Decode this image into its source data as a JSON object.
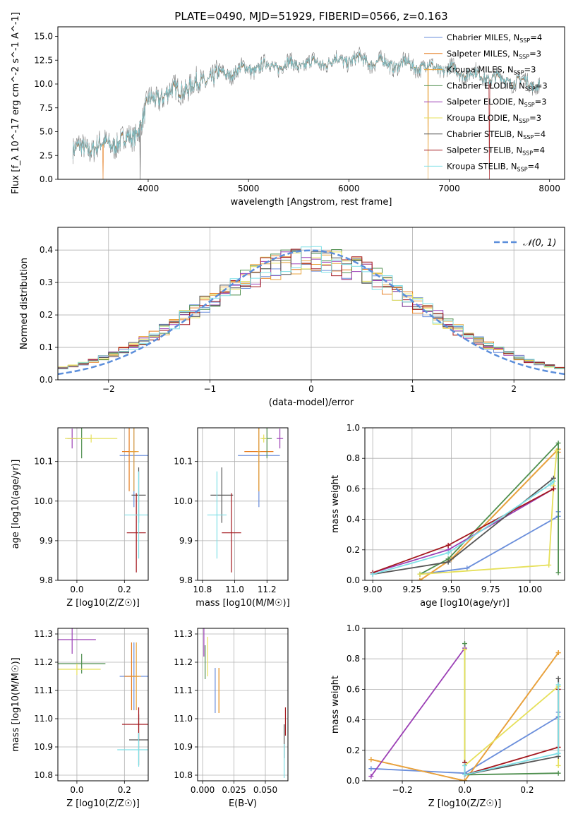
{
  "figure": {
    "title": "PLATE=0490, MJD=51929, FIBERID=0566, z=0.163"
  },
  "model_colors": [
    "#6A8EDB",
    "#E67E22",
    "#E8A33C",
    "#4F8F4F",
    "#9B3FB5",
    "#E6E05A",
    "#555555",
    "#A3171D",
    "#7EDFE6"
  ],
  "spectrum_colors": {
    "data": "#808080"
  },
  "chart_data": [
    {
      "id": "spectrum",
      "type": "line",
      "title": "PLATE=0490, MJD=51929, FIBERID=0566, z=0.163",
      "xlabel": "wavelength [Angstrom, rest frame]",
      "ylabel": "Flux [f_λ 10^-17 erg cm^-2 s^-1 A^-1]",
      "xlim": [
        3100,
        8150
      ],
      "ylim": [
        0,
        16
      ],
      "xticks": [
        "4000",
        "5000",
        "6000",
        "7000",
        "8000"
      ],
      "yticks": [
        "0.0",
        "2.5",
        "5.0",
        "7.5",
        "10.0",
        "12.5",
        "15.0"
      ],
      "envelope": {
        "x": [
          3250,
          3400,
          3550,
          3700,
          3850,
          3950,
          4000,
          4150,
          4300,
          4450,
          4600,
          4800,
          5000,
          5200,
          5400,
          5600,
          5800,
          6000,
          6200,
          6400,
          6600,
          6800,
          7000,
          7200,
          7400,
          7600,
          7900
        ],
        "y": [
          3.1,
          3.3,
          3.6,
          3.9,
          4.4,
          6.5,
          8.0,
          8.9,
          9.4,
          9.8,
          10.6,
          11.2,
          11.6,
          11.9,
          12.0,
          12.1,
          12.3,
          12.6,
          12.4,
          12.1,
          12.0,
          11.8,
          11.5,
          11.1,
          10.7,
          10.4,
          10.0
        ]
      },
      "dips": [
        {
          "x": 3550,
          "y": 0
        },
        {
          "x": 3920,
          "y": 0
        },
        {
          "x": 6790,
          "y": 0
        },
        {
          "x": 7400,
          "y": 0
        }
      ],
      "legend_position": "right",
      "legend": [
        {
          "label": "Chabrier MILES, N",
          "sub": "SSP",
          "suffix": "=4"
        },
        {
          "label": "Salpeter MILES, N",
          "sub": "SSP",
          "suffix": "=3"
        },
        {
          "label": "Kroupa MILES, N",
          "sub": "SSP",
          "suffix": "=3"
        },
        {
          "label": "Chabrier ELODIE, N",
          "sub": "SSP",
          "suffix": "=3"
        },
        {
          "label": "Salpeter ELODIE, N",
          "sub": "SSP",
          "suffix": "=3"
        },
        {
          "label": "Kroupa ELODIE, N",
          "sub": "SSP",
          "suffix": "=3"
        },
        {
          "label": "Chabrier STELIB, N",
          "sub": "SSP",
          "suffix": "=4"
        },
        {
          "label": "Salpeter STELIB, N",
          "sub": "SSP",
          "suffix": "=4"
        },
        {
          "label": "Kroupa STELIB, N",
          "sub": "SSP",
          "suffix": "=4"
        }
      ]
    },
    {
      "id": "residuals",
      "type": "histogram",
      "xlabel": "(data-model)/error",
      "ylabel": "Normed distribution",
      "xlim": [
        -2.5,
        2.5
      ],
      "ylim": [
        0,
        0.47
      ],
      "xticks": [
        "−2",
        "−1",
        "0",
        "1",
        "2"
      ],
      "yticks": [
        "0.0",
        "0.1",
        "0.2",
        "0.3",
        "0.4"
      ],
      "bins": 50,
      "legend": "𝒩(0, 1)",
      "legend_position": "top-right",
      "gaussian_color": "#5B8EDB"
    },
    {
      "id": "age_vs_Z",
      "type": "errorbar",
      "xlabel": "Z [log10(Z/Z☉)]",
      "ylabel": "age  [log10(age/yr)]",
      "xlim": [
        -0.08,
        0.3
      ],
      "ylim": [
        9.8,
        10.185
      ],
      "xticks": [
        "0.0",
        "0.2"
      ],
      "yticks": [
        "9.8",
        "9.9",
        "10.0",
        "10.1"
      ],
      "points": [
        {
          "x": 0.24,
          "xerr": 0.06,
          "y": 10.115,
          "yerr": 0.13
        },
        {
          "x": 0.22,
          "xerr": 0.03,
          "y": 10.125,
          "yerr": 0.1
        },
        {
          "x": 0.24,
          "xerr": 0.02,
          "y": 10.125,
          "yerr": 0.1
        },
        {
          "x": 0.02,
          "xerr": 0.04,
          "y": 10.158,
          "yerr": 0.05
        },
        {
          "x": -0.02,
          "xerr": 0.02,
          "y": 10.158,
          "yerr": 0.025
        },
        {
          "x": 0.06,
          "xerr": 0.11,
          "y": 10.158,
          "yerr": 0.01
        },
        {
          "x": 0.26,
          "xerr": 0.03,
          "y": 10.015,
          "yerr": 0.07
        },
        {
          "x": 0.25,
          "xerr": 0.04,
          "y": 9.92,
          "yerr": 0.1
        },
        {
          "x": 0.26,
          "xerr": 0.06,
          "y": 9.965,
          "yerr": 0.11
        }
      ]
    },
    {
      "id": "age_vs_mass",
      "type": "errorbar",
      "xlabel": "mass [log10(M/M☉)]",
      "ylabel": "",
      "xlim": [
        10.77,
        11.33
      ],
      "ylim": [
        9.8,
        10.185
      ],
      "xticks": [
        "10.8",
        "11.0",
        "11.2"
      ],
      "yticks": [
        "9.8",
        "9.9",
        "10.0",
        "10.1"
      ],
      "points": [
        {
          "x": 11.15,
          "xerr": 0.13,
          "y": 10.115,
          "yerr": 0.13
        },
        {
          "x": 11.15,
          "xerr": 0.09,
          "y": 10.125,
          "yerr": 0.1
        },
        {
          "x": 11.15,
          "xerr": 0.01,
          "y": 10.125,
          "yerr": 0.1
        },
        {
          "x": 11.2,
          "xerr": 0.03,
          "y": 10.158,
          "yerr": 0.05
        },
        {
          "x": 11.28,
          "xerr": 0.02,
          "y": 10.158,
          "yerr": 0.025
        },
        {
          "x": 11.18,
          "xerr": 0.02,
          "y": 10.158,
          "yerr": 0.01
        },
        {
          "x": 10.92,
          "xerr": 0.07,
          "y": 10.015,
          "yerr": 0.07
        },
        {
          "x": 10.98,
          "xerr": 0.06,
          "y": 9.92,
          "yerr": 0.1
        },
        {
          "x": 10.89,
          "xerr": 0.06,
          "y": 9.965,
          "yerr": 0.11
        }
      ]
    },
    {
      "id": "weight_vs_age",
      "type": "line",
      "xlabel": "age  [log10(age/yr)]",
      "ylabel": "mass weight",
      "xlim": [
        8.95,
        10.22
      ],
      "ylim": [
        0,
        1.0
      ],
      "xticks": [
        "9.00",
        "9.25",
        "9.50",
        "9.75",
        "10.00"
      ],
      "yticks": [
        "0.0",
        "0.2",
        "0.4",
        "0.6",
        "0.8",
        "1.0"
      ],
      "series": [
        {
          "x": [
            9.3,
            9.6,
            10.18,
            10.18
          ],
          "y": [
            0.04,
            0.08,
            0.42,
            0.45
          ]
        },
        {
          "x": [
            9.3,
            9.5,
            10.18,
            10.18
          ],
          "y": [
            0.0,
            0.14,
            0.86,
            0.84
          ]
        },
        {
          "x": [
            9.3,
            9.5,
            10.18
          ],
          "y": [
            0.0,
            0.14,
            0.86
          ]
        },
        {
          "x": [
            9.3,
            9.48,
            10.18,
            10.18
          ],
          "y": [
            0.04,
            0.14,
            0.9,
            0.05
          ]
        },
        {
          "x": [
            9.0,
            9.48,
            10.15
          ],
          "y": [
            0.05,
            0.2,
            0.6
          ]
        },
        {
          "x": [
            9.3,
            10.12,
            10.15,
            10.17
          ],
          "y": [
            0.04,
            0.1,
            0.62,
            0.85
          ]
        },
        {
          "x": [
            9.0,
            9.48,
            10.15
          ],
          "y": [
            0.04,
            0.12,
            0.67
          ]
        },
        {
          "x": [
            9.0,
            9.48,
            10.15
          ],
          "y": [
            0.05,
            0.23,
            0.6
          ]
        },
        {
          "x": [
            9.0,
            9.48,
            10.13,
            10.15
          ],
          "y": [
            0.04,
            0.18,
            0.63,
            0.65
          ]
        }
      ]
    },
    {
      "id": "mass_vs_Z",
      "type": "errorbar",
      "xlabel": "Z [log10(Z/Z☉)]",
      "ylabel": "mass [log10(M/M☉)]",
      "xlim": [
        -0.08,
        0.3
      ],
      "ylim": [
        10.78,
        11.32
      ],
      "xticks": [
        "0.0",
        "0.2"
      ],
      "yticks": [
        "10.8",
        "10.9",
        "11.0",
        "11.1",
        "11.2",
        "11.3"
      ],
      "points": [
        {
          "x": 0.24,
          "xerr": 0.06,
          "y": 11.15,
          "yerr": 0.12
        },
        {
          "x": 0.23,
          "xerr": 0.03,
          "y": 11.15,
          "yerr": 0.12
        },
        {
          "x": 0.25,
          "xerr": 0.02,
          "y": 11.15,
          "yerr": 0.12
        },
        {
          "x": 0.02,
          "xerr": 0.1,
          "y": 11.195,
          "yerr": 0.035
        },
        {
          "x": -0.02,
          "xerr": 0.1,
          "y": 11.28,
          "yerr": 0.05
        },
        {
          "x": 0.0,
          "xerr": 0.1,
          "y": 11.175,
          "yerr": 0.02
        },
        {
          "x": 0.26,
          "xerr": 0.04,
          "y": 10.925,
          "yerr": 0.09
        },
        {
          "x": 0.26,
          "xerr": 0.07,
          "y": 10.98,
          "yerr": 0.06
        },
        {
          "x": 0.26,
          "xerr": 0.09,
          "y": 10.89,
          "yerr": 0.06
        }
      ]
    },
    {
      "id": "mass_vs_ebv",
      "type": "errorbar",
      "xlabel": "E(B-V)",
      "ylabel": "",
      "xlim": [
        -0.004,
        0.068
      ],
      "ylim": [
        10.78,
        11.32
      ],
      "xticks": [
        "0.000",
        "0.025",
        "0.050"
      ],
      "yticks": [
        "10.8",
        "10.9",
        "11.0",
        "11.1",
        "11.2",
        "11.3"
      ],
      "points": [
        {
          "x": 0.01,
          "xerr": 0,
          "y": 11.1,
          "yerr": 0.08
        },
        {
          "x": 0.013,
          "xerr": 0,
          "y": 11.1,
          "yerr": 0.08
        },
        {
          "x": 0.013,
          "xerr": 0,
          "y": 11.1,
          "yerr": 0.08
        },
        {
          "x": 0.002,
          "xerr": 0,
          "y": 11.2,
          "yerr": 0.06
        },
        {
          "x": 0.001,
          "xerr": 0,
          "y": 11.27,
          "yerr": 0.05
        },
        {
          "x": 0.004,
          "xerr": 0,
          "y": 11.22,
          "yerr": 0.07
        },
        {
          "x": 0.065,
          "xerr": 0,
          "y": 10.92,
          "yerr": 0.06
        },
        {
          "x": 0.066,
          "xerr": 0,
          "y": 10.99,
          "yerr": 0.05
        },
        {
          "x": 0.065,
          "xerr": 0,
          "y": 10.85,
          "yerr": 0.06
        }
      ]
    },
    {
      "id": "weight_vs_Z",
      "type": "line",
      "xlabel": "Z [log10(Z/Z☉)]",
      "ylabel": "mass weight",
      "xlim": [
        -0.32,
        0.32
      ],
      "ylim": [
        0,
        1.0
      ],
      "xticks": [
        "−0.2",
        "0.0",
        "0.2"
      ],
      "yticks": [
        "0.0",
        "0.2",
        "0.4",
        "0.6",
        "0.8",
        "1.0"
      ],
      "series": [
        {
          "x": [
            -0.3,
            0.0,
            0.3,
            0.3
          ],
          "y": [
            0.08,
            0.05,
            0.42,
            0.45
          ]
        },
        {
          "x": [
            -0.3,
            0.0,
            0.3
          ],
          "y": [
            0.14,
            0.0,
            0.84
          ]
        },
        {
          "x": [
            -0.3,
            0.0,
            0.3
          ],
          "y": [
            0.14,
            0.0,
            0.84
          ]
        },
        {
          "x": [
            0.0,
            0.0,
            0.3
          ],
          "y": [
            0.9,
            0.04,
            0.05
          ]
        },
        {
          "x": [
            -0.3,
            0.0
          ],
          "y": [
            0.03,
            0.87
          ]
        },
        {
          "x": [
            0.0,
            0.0,
            0.3,
            0.3
          ],
          "y": [
            0.86,
            0.1,
            0.62,
            0.1
          ]
        },
        {
          "x": [
            0.0,
            0.0,
            0.3,
            0.3
          ],
          "y": [
            0.12,
            0.04,
            0.16,
            0.67
          ]
        },
        {
          "x": [
            0.0,
            0.0,
            0.3,
            0.3
          ],
          "y": [
            0.12,
            0.04,
            0.22,
            0.6
          ]
        },
        {
          "x": [
            0.0,
            0.0,
            0.3,
            0.3
          ],
          "y": [
            0.1,
            0.04,
            0.18,
            0.63
          ]
        }
      ]
    }
  ]
}
